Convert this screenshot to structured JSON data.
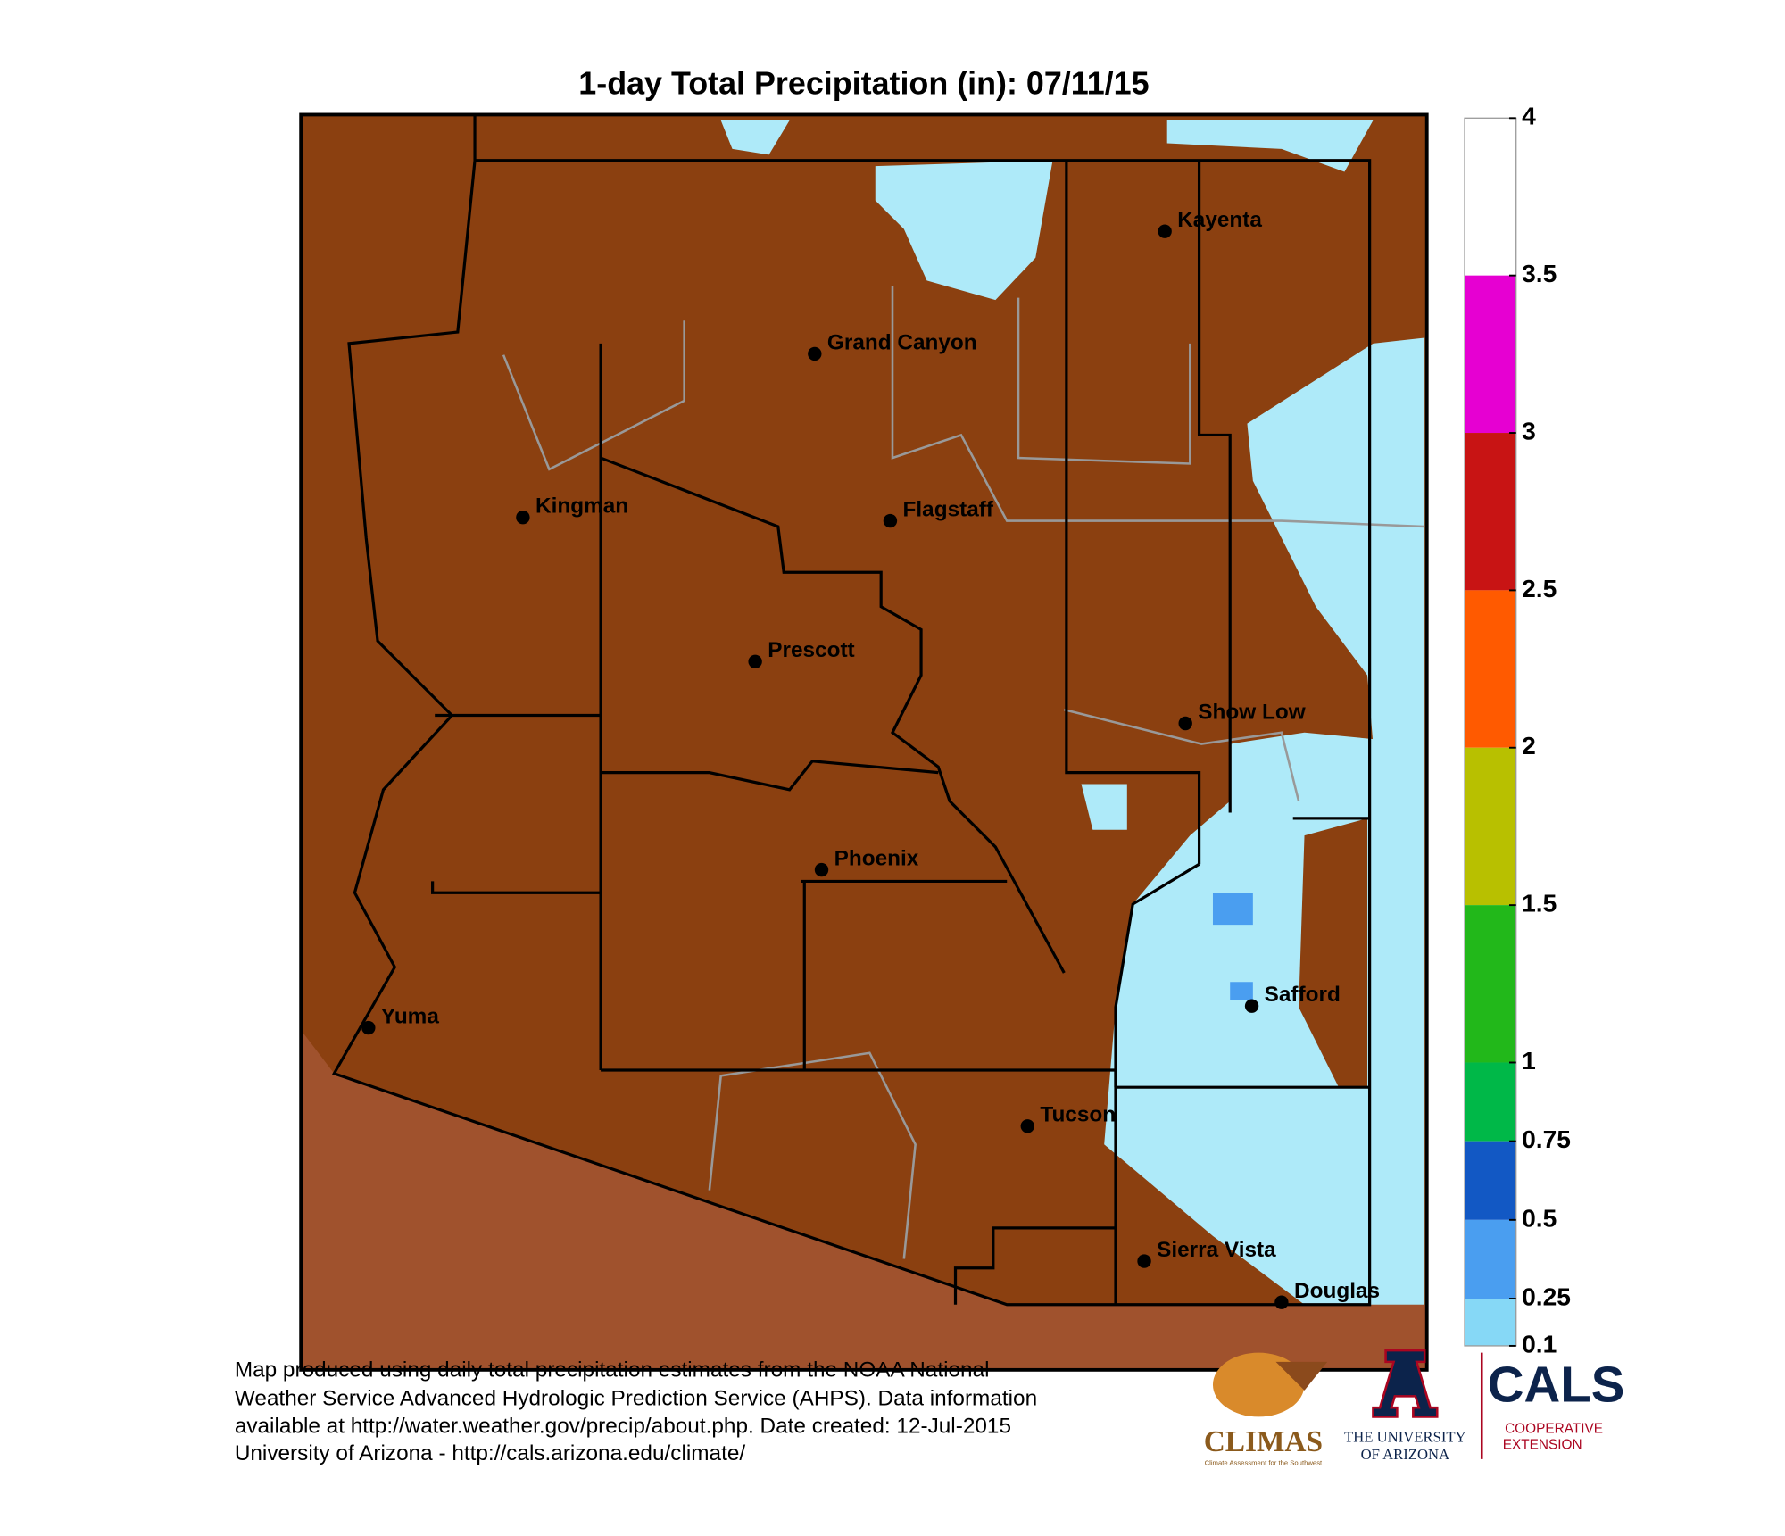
{
  "title": "1-day Total Precipitation (in): 07/11/15",
  "cities": [
    "Kayenta",
    "Grand Canyon",
    "Kingman",
    "Flagstaff",
    "Prescott",
    "Show Low",
    "Phoenix",
    "Safford",
    "Yuma",
    "Tucson",
    "Sierra Vista",
    "Douglas"
  ],
  "legend": {
    "ticks": [
      4,
      3.5,
      3,
      2.5,
      2,
      1.5,
      1,
      0.75,
      0.5,
      0.25,
      0.1
    ],
    "colors": [
      "#ffffff",
      "#e600d2",
      "#c81414",
      "#ff5a00",
      "#b8c000",
      "#22b81a",
      "#00b848",
      "#1258c4",
      "#4a9ef0",
      "#86d8f6"
    ]
  },
  "footer": [
    "Map produced using daily total precipitation estimates from the NOAA National",
    "Weather Service Advanced Hydrologic Prediction Service (AHPS). Data information",
    "available at http://water.weather.gov/precip/about.php. Date created: 12-Jul-2015",
    "University of Arizona - http://cals.arizona.edu/climate/"
  ],
  "logos": {
    "climas": "CLIMAS",
    "climas_tagline": "Climate Assessment for the Southwest",
    "university": [
      "THE UNIVERSITY",
      "OF ARIZONA"
    ],
    "cals": "CALS",
    "cals_sub": [
      "COOPERATIVE",
      "EXTENSION"
    ]
  }
}
